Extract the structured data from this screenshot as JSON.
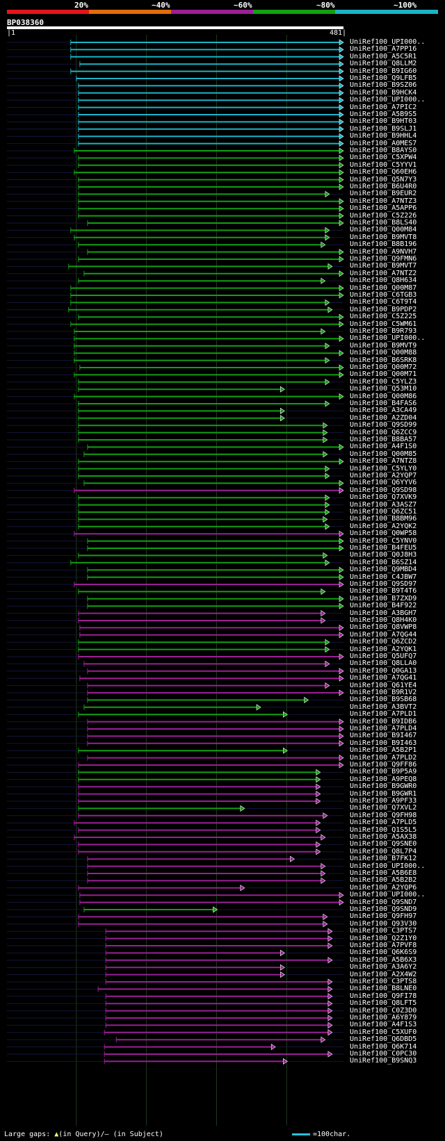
{
  "legend": {
    "labels": [
      "20%",
      "~40%",
      "~60%",
      "~80%",
      "~100%"
    ],
    "colors": [
      "#e8141c",
      "#e36c0a",
      "#9b1f96",
      "#12a012",
      "#1ab4c8"
    ]
  },
  "query": {
    "name": "BP038360",
    "start_label": "|1",
    "end_label": "481|"
  },
  "footer": {
    "gaps_prefix": "Large gaps:",
    "in_query": "(in Query)/",
    "in_subject": "(in Subject)",
    "scale_text": "=100char."
  },
  "chart_data": {
    "type": "bar",
    "x_range": [
      1,
      481
    ],
    "identity_classes": [
      "~100%",
      "~80%",
      "~60%"
    ],
    "hits": [
      {
        "name": "UniRef100_UPI000..",
        "start": 92,
        "end": 481,
        "cls": "~100%"
      },
      {
        "name": "UniRef100_A7PP16",
        "start": 92,
        "end": 481,
        "cls": "~100%"
      },
      {
        "name": "UniRef100_A5C5R1",
        "start": 92,
        "end": 481,
        "cls": "~100%"
      },
      {
        "name": "UniRef100_Q8LLM2",
        "start": 105,
        "end": 481,
        "cls": "~100%"
      },
      {
        "name": "UniRef100_B9IG60",
        "start": 92,
        "end": 481,
        "cls": "~100%"
      },
      {
        "name": "UniRef100_Q9LFB5",
        "start": 100,
        "end": 481,
        "cls": "~100%"
      },
      {
        "name": "UniRef100_B9SZ06",
        "start": 103,
        "end": 481,
        "cls": "~100%"
      },
      {
        "name": "UniRef100_B9HCK4",
        "start": 103,
        "end": 481,
        "cls": "~100%"
      },
      {
        "name": "UniRef100_UPI000..",
        "start": 103,
        "end": 481,
        "cls": "~100%"
      },
      {
        "name": "UniRef100_A7PIC2",
        "start": 103,
        "end": 481,
        "cls": "~100%"
      },
      {
        "name": "UniRef100_A5B9S5",
        "start": 103,
        "end": 481,
        "cls": "~100%"
      },
      {
        "name": "UniRef100_B9HT03",
        "start": 103,
        "end": 481,
        "cls": "~100%"
      },
      {
        "name": "UniRef100_B9SLJ1",
        "start": 103,
        "end": 481,
        "cls": "~100%"
      },
      {
        "name": "UniRef100_B9HHL4",
        "start": 103,
        "end": 481,
        "cls": "~100%"
      },
      {
        "name": "UniRef100_A0MES7",
        "start": 103,
        "end": 481,
        "cls": "~100%"
      },
      {
        "name": "UniRef100_B8AYS0",
        "start": 97,
        "end": 481,
        "cls": "~80%"
      },
      {
        "name": "UniRef100_C5XPW4",
        "start": 103,
        "end": 481,
        "cls": "~80%"
      },
      {
        "name": "UniRef100_C5YYV1",
        "start": 103,
        "end": 481,
        "cls": "~80%"
      },
      {
        "name": "UniRef100_Q60EH6",
        "start": 97,
        "end": 481,
        "cls": "~80%"
      },
      {
        "name": "UniRef100_Q5N7Y3",
        "start": 103,
        "end": 481,
        "cls": "~80%"
      },
      {
        "name": "UniRef100_B6U4R0",
        "start": 103,
        "end": 481,
        "cls": "~80%"
      },
      {
        "name": "UniRef100_B9EUR2",
        "start": 103,
        "end": 461,
        "cls": "~80%"
      },
      {
        "name": "UniRef100_A7NTZ3",
        "start": 103,
        "end": 481,
        "cls": "~80%"
      },
      {
        "name": "UniRef100_A5APP6",
        "start": 103,
        "end": 481,
        "cls": "~80%"
      },
      {
        "name": "UniRef100_C5Z226",
        "start": 103,
        "end": 481,
        "cls": "~80%"
      },
      {
        "name": "UniRef100_B8LS40",
        "start": 116,
        "end": 481,
        "cls": "~80%"
      },
      {
        "name": "UniRef100_Q00M84",
        "start": 92,
        "end": 461,
        "cls": "~80%"
      },
      {
        "name": "UniRef100_B9MVT8",
        "start": 97,
        "end": 461,
        "cls": "~80%"
      },
      {
        "name": "UniRef100_B8B196",
        "start": 103,
        "end": 455,
        "cls": "~80%"
      },
      {
        "name": "UniRef100_A9NVH7",
        "start": 116,
        "end": 481,
        "cls": "~80%"
      },
      {
        "name": "UniRef100_Q9FMN6",
        "start": 103,
        "end": 481,
        "cls": "~80%"
      },
      {
        "name": "UniRef100_B9MVT7",
        "start": 89,
        "end": 465,
        "cls": "~80%"
      },
      {
        "name": "UniRef100_A7NTZ2",
        "start": 111,
        "end": 481,
        "cls": "~80%"
      },
      {
        "name": "UniRef100_Q8H634",
        "start": 103,
        "end": 455,
        "cls": "~80%"
      },
      {
        "name": "UniRef100_Q00M87",
        "start": 92,
        "end": 481,
        "cls": "~80%"
      },
      {
        "name": "UniRef100_C6TGB3",
        "start": 92,
        "end": 481,
        "cls": "~80%"
      },
      {
        "name": "UniRef100_C6T9T4",
        "start": 92,
        "end": 461,
        "cls": "~80%"
      },
      {
        "name": "UniRef100_B9PDP2",
        "start": 89,
        "end": 465,
        "cls": "~80%"
      },
      {
        "name": "UniRef100_C5Z225",
        "start": 103,
        "end": 481,
        "cls": "~80%"
      },
      {
        "name": "UniRef100_C5WM61",
        "start": 92,
        "end": 481,
        "cls": "~80%"
      },
      {
        "name": "UniRef100_B9R793",
        "start": 97,
        "end": 455,
        "cls": "~80%"
      },
      {
        "name": "UniRef100_UPI000..",
        "start": 97,
        "end": 481,
        "cls": "~80%"
      },
      {
        "name": "UniRef100_B9MVT9",
        "start": 97,
        "end": 461,
        "cls": "~80%"
      },
      {
        "name": "UniRef100_Q00M88",
        "start": 97,
        "end": 481,
        "cls": "~80%"
      },
      {
        "name": "UniRef100_B6SRK8",
        "start": 97,
        "end": 461,
        "cls": "~80%"
      },
      {
        "name": "UniRef100_Q00M72",
        "start": 105,
        "end": 481,
        "cls": "~80%"
      },
      {
        "name": "UniRef100_Q00M71",
        "start": 97,
        "end": 481,
        "cls": "~80%"
      },
      {
        "name": "UniRef100_C5YLZ3",
        "start": 103,
        "end": 461,
        "cls": "~80%"
      },
      {
        "name": "UniRef100_Q53M10",
        "start": 103,
        "end": 397,
        "cls": "~80%"
      },
      {
        "name": "UniRef100_Q00M86",
        "start": 97,
        "end": 481,
        "cls": "~80%"
      },
      {
        "name": "UniRef100_B4FAS6",
        "start": 103,
        "end": 461,
        "cls": "~80%"
      },
      {
        "name": "UniRef100_A3CA49",
        "start": 103,
        "end": 397,
        "cls": "~80%"
      },
      {
        "name": "UniRef100_A2ZD04",
        "start": 103,
        "end": 397,
        "cls": "~80%"
      },
      {
        "name": "UniRef100_Q9SD99",
        "start": 103,
        "end": 458,
        "cls": "~80%"
      },
      {
        "name": "UniRef100_Q6ZCC9",
        "start": 103,
        "end": 458,
        "cls": "~80%"
      },
      {
        "name": "UniRef100_B8BA57",
        "start": 103,
        "end": 458,
        "cls": "~80%"
      },
      {
        "name": "UniRef100_A4F1S0",
        "start": 116,
        "end": 481,
        "cls": "~80%"
      },
      {
        "name": "UniRef100_Q00M85",
        "start": 111,
        "end": 458,
        "cls": "~80%"
      },
      {
        "name": "UniRef100_A7NTZ8",
        "start": 103,
        "end": 481,
        "cls": "~80%"
      },
      {
        "name": "UniRef100_C5YLY0",
        "start": 103,
        "end": 461,
        "cls": "~80%"
      },
      {
        "name": "UniRef100_A2YQP7",
        "start": 103,
        "end": 461,
        "cls": "~80%"
      },
      {
        "name": "UniRef100_Q6YYV6",
        "start": 111,
        "end": 481,
        "cls": "~80%"
      },
      {
        "name": "UniRef100_Q9SD98",
        "start": 97,
        "end": 481,
        "cls": "~60%"
      },
      {
        "name": "UniRef100_Q7XVK9",
        "start": 103,
        "end": 461,
        "cls": "~80%"
      },
      {
        "name": "UniRef100_A3ASZ7",
        "start": 103,
        "end": 461,
        "cls": "~80%"
      },
      {
        "name": "UniRef100_Q6ZC51",
        "start": 103,
        "end": 461,
        "cls": "~80%"
      },
      {
        "name": "UniRef100_B8BM96",
        "start": 103,
        "end": 458,
        "cls": "~80%"
      },
      {
        "name": "UniRef100_A2YQK2",
        "start": 103,
        "end": 461,
        "cls": "~80%"
      },
      {
        "name": "UniRef100_Q0WP58",
        "start": 97,
        "end": 481,
        "cls": "~60%"
      },
      {
        "name": "UniRef100_C5YNV0",
        "start": 116,
        "end": 481,
        "cls": "~80%"
      },
      {
        "name": "UniRef100_B4FEU5",
        "start": 116,
        "end": 481,
        "cls": "~80%"
      },
      {
        "name": "UniRef100_Q0J8H3",
        "start": 103,
        "end": 458,
        "cls": "~80%"
      },
      {
        "name": "UniRef100_B6SZ14",
        "start": 92,
        "end": 461,
        "cls": "~80%"
      },
      {
        "name": "UniRef100_Q9MBD4",
        "start": 116,
        "end": 481,
        "cls": "~80%"
      },
      {
        "name": "UniRef100_C4JBW7",
        "start": 116,
        "end": 481,
        "cls": "~80%"
      },
      {
        "name": "UniRef100_Q9SD97",
        "start": 97,
        "end": 481,
        "cls": "~60%"
      },
      {
        "name": "UniRef100_B9T4T6",
        "start": 103,
        "end": 455,
        "cls": "~80%"
      },
      {
        "name": "UniRef100_B7ZXD9",
        "start": 116,
        "end": 481,
        "cls": "~80%"
      },
      {
        "name": "UniRef100_B4F922",
        "start": 116,
        "end": 481,
        "cls": "~80%"
      },
      {
        "name": "UniRef100_A3BGH7",
        "start": 103,
        "end": 455,
        "cls": "~60%"
      },
      {
        "name": "UniRef100_Q8H4K0",
        "start": 103,
        "end": 455,
        "cls": "~60%"
      },
      {
        "name": "UniRef100_Q8VWP8",
        "start": 105,
        "end": 481,
        "cls": "~60%"
      },
      {
        "name": "UniRef100_A7QG44",
        "start": 105,
        "end": 481,
        "cls": "~60%"
      },
      {
        "name": "UniRef100_Q6ZCD2",
        "start": 103,
        "end": 461,
        "cls": "~80%"
      },
      {
        "name": "UniRef100_A2YQK1",
        "start": 103,
        "end": 461,
        "cls": "~80%"
      },
      {
        "name": "UniRef100_Q5UFQ7",
        "start": 103,
        "end": 481,
        "cls": "~60%"
      },
      {
        "name": "UniRef100_Q8LLA0",
        "start": 111,
        "end": 461,
        "cls": "~60%"
      },
      {
        "name": "UniRef100_Q0GA13",
        "start": 116,
        "end": 481,
        "cls": "~60%"
      },
      {
        "name": "UniRef100_A7QG41",
        "start": 105,
        "end": 481,
        "cls": "~60%"
      },
      {
        "name": "UniRef100_Q61YE4",
        "start": 116,
        "end": 461,
        "cls": "~60%"
      },
      {
        "name": "UniRef100_B9R1V2",
        "start": 116,
        "end": 481,
        "cls": "~60%"
      },
      {
        "name": "UniRef100_B9SB68",
        "start": 116,
        "end": 431,
        "cls": "~80%"
      },
      {
        "name": "UniRef100_A3BVT2",
        "start": 111,
        "end": 363,
        "cls": "~80%"
      },
      {
        "name": "UniRef100_A7PLD1",
        "start": 103,
        "end": 401,
        "cls": "~80%"
      },
      {
        "name": "UniRef100_B9IDB6",
        "start": 116,
        "end": 481,
        "cls": "~60%"
      },
      {
        "name": "UniRef100_A7PLD4",
        "start": 116,
        "end": 481,
        "cls": "~60%"
      },
      {
        "name": "UniRef100_B9I467",
        "start": 116,
        "end": 481,
        "cls": "~60%"
      },
      {
        "name": "UniRef100_B9I463",
        "start": 116,
        "end": 481,
        "cls": "~60%"
      },
      {
        "name": "UniRef100_A5B2P1",
        "start": 103,
        "end": 401,
        "cls": "~80%"
      },
      {
        "name": "UniRef100_A7PLD2",
        "start": 116,
        "end": 481,
        "cls": "~60%"
      },
      {
        "name": "UniRef100_Q9FF86",
        "start": 103,
        "end": 481,
        "cls": "~60%"
      },
      {
        "name": "UniRef100_B9P5A9",
        "start": 103,
        "end": 448,
        "cls": "~80%"
      },
      {
        "name": "UniRef100_A9PEQ8",
        "start": 103,
        "end": 448,
        "cls": "~80%"
      },
      {
        "name": "UniRef100_B9GWR0",
        "start": 103,
        "end": 448,
        "cls": "~60%"
      },
      {
        "name": "UniRef100_B9GWR1",
        "start": 103,
        "end": 448,
        "cls": "~60%"
      },
      {
        "name": "UniRef100_A9PF33",
        "start": 103,
        "end": 448,
        "cls": "~60%"
      },
      {
        "name": "UniRef100_Q7XVL2",
        "start": 103,
        "end": 340,
        "cls": "~80%"
      },
      {
        "name": "UniRef100_Q9FH98",
        "start": 103,
        "end": 458,
        "cls": "~60%"
      },
      {
        "name": "UniRef100_A7PLD5",
        "start": 97,
        "end": 448,
        "cls": "~60%"
      },
      {
        "name": "UniRef100_Q1S5L5",
        "start": 103,
        "end": 448,
        "cls": "~60%"
      },
      {
        "name": "UniRef100_A5AX38",
        "start": 97,
        "end": 455,
        "cls": "~60%"
      },
      {
        "name": "UniRef100_Q9SNE0",
        "start": 103,
        "end": 448,
        "cls": "~60%"
      },
      {
        "name": "UniRef100_Q8L7P4",
        "start": 103,
        "end": 448,
        "cls": "~60%"
      },
      {
        "name": "UniRef100_B7FK12",
        "start": 116,
        "end": 411,
        "cls": "~60%"
      },
      {
        "name": "UniRef100_UPI000..",
        "start": 116,
        "end": 455,
        "cls": "~60%"
      },
      {
        "name": "UniRef100_A5B6E8",
        "start": 116,
        "end": 455,
        "cls": "~60%"
      },
      {
        "name": "UniRef100_A5B2B2",
        "start": 116,
        "end": 455,
        "cls": "~60%"
      },
      {
        "name": "UniRef100_A2YQP6",
        "start": 103,
        "end": 340,
        "cls": "~60%"
      },
      {
        "name": "UniRef100_UPI000..",
        "start": 105,
        "end": 481,
        "cls": "~60%"
      },
      {
        "name": "UniRef100_Q9SND7",
        "start": 105,
        "end": 481,
        "cls": "~60%"
      },
      {
        "name": "UniRef100_Q9SND9",
        "start": 111,
        "end": 301,
        "cls": "~80%"
      },
      {
        "name": "UniRef100_Q9FH97",
        "start": 103,
        "end": 458,
        "cls": "~60%"
      },
      {
        "name": "UniRef100_Q93V30",
        "start": 103,
        "end": 458,
        "cls": "~60%"
      },
      {
        "name": "UniRef100_C3PTS7",
        "start": 142,
        "end": 465,
        "cls": "~60%"
      },
      {
        "name": "UniRef100_Q2Z1Y0",
        "start": 142,
        "end": 465,
        "cls": "~60%"
      },
      {
        "name": "UniRef100_A7PVF8",
        "start": 142,
        "end": 465,
        "cls": "~60%"
      },
      {
        "name": "UniRef100_Q6K6S9",
        "start": 142,
        "end": 397,
        "cls": "~60%"
      },
      {
        "name": "UniRef100_A5B6X3",
        "start": 142,
        "end": 465,
        "cls": "~60%"
      },
      {
        "name": "UniRef100_A3A6Y2",
        "start": 142,
        "end": 397,
        "cls": "~60%"
      },
      {
        "name": "UniRef100_A2X4W2",
        "start": 142,
        "end": 397,
        "cls": "~60%"
      },
      {
        "name": "UniRef100_C3PTS8",
        "start": 142,
        "end": 465,
        "cls": "~60%"
      },
      {
        "name": "UniRef100_B8LNE0",
        "start": 131,
        "end": 465,
        "cls": "~60%"
      },
      {
        "name": "UniRef100_Q9FI78",
        "start": 142,
        "end": 465,
        "cls": "~60%"
      },
      {
        "name": "UniRef100_Q8LFT5",
        "start": 142,
        "end": 465,
        "cls": "~60%"
      },
      {
        "name": "UniRef100_C0Z3D0",
        "start": 142,
        "end": 465,
        "cls": "~60%"
      },
      {
        "name": "UniRef100_A6Y879",
        "start": 142,
        "end": 465,
        "cls": "~60%"
      },
      {
        "name": "UniRef100_A4F1S3",
        "start": 142,
        "end": 465,
        "cls": "~60%"
      },
      {
        "name": "UniRef100_C5XUF0",
        "start": 140,
        "end": 465,
        "cls": "~60%"
      },
      {
        "name": "UniRef100_Q6DBD5",
        "start": 157,
        "end": 455,
        "cls": "~60%"
      },
      {
        "name": "UniRef100_Q6K714",
        "start": 140,
        "end": 384,
        "cls": "~60%"
      },
      {
        "name": "UniRef100_C0PC30",
        "start": 140,
        "end": 465,
        "cls": "~60%"
      },
      {
        "name": "UniRef100_B9SNQ3",
        "start": 140,
        "end": 401,
        "cls": "~60%"
      }
    ]
  }
}
